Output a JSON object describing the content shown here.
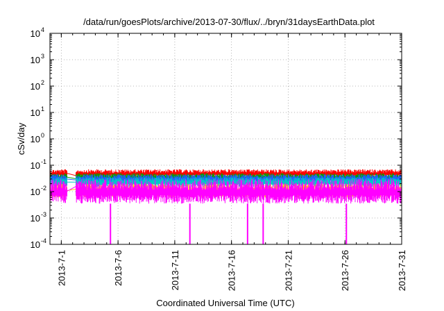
{
  "chart_data": {
    "type": "line",
    "title": "/data/run/goesPlots/archive/2013-07-30/flux/../bryn/31daysEarthData.plot",
    "xlabel": "Coordinated Universal Time (UTC)",
    "ylabel": "cSv/day",
    "x_scale": "time",
    "y_scale": "log",
    "xlim": [
      "2013-06-30",
      "2013-07-31"
    ],
    "ylim": [
      0.0001,
      10000
    ],
    "x_ticks": [
      "2013-7-1",
      "2013-7-6",
      "2013-7-11",
      "2013-7-16",
      "2013-7-21",
      "2013-7-26",
      "2013-7-31"
    ],
    "y_ticks": [
      {
        "base": "10",
        "exp": "-4",
        "value": 0.0001
      },
      {
        "base": "10",
        "exp": "-3",
        "value": 0.001
      },
      {
        "base": "10",
        "exp": "-2",
        "value": 0.01
      },
      {
        "base": "10",
        "exp": "-1",
        "value": 0.1
      },
      {
        "base": "10",
        "exp": "0",
        "value": 1
      },
      {
        "base": "10",
        "exp": "1",
        "value": 10
      },
      {
        "base": "10",
        "exp": "2",
        "value": 100
      },
      {
        "base": "10",
        "exp": "3",
        "value": 1000
      },
      {
        "base": "10",
        "exp": "4",
        "value": 10000
      }
    ],
    "grid": true,
    "legend": "none",
    "data_gap": [
      "2013-07-01T12:00",
      "2013-07-02T07:00"
    ],
    "series": [
      {
        "color": "#ff0000",
        "band": [
          0.035,
          0.07
        ]
      },
      {
        "color": "#00a000",
        "band": [
          0.025,
          0.05
        ]
      },
      {
        "color": "#2060ff",
        "band": [
          0.02,
          0.045
        ]
      },
      {
        "color": "#00c8c8",
        "band": [
          0.015,
          0.035
        ]
      },
      {
        "color": "#ffcc00",
        "band": [
          0.006,
          0.02
        ]
      },
      {
        "color": "#ff00ff",
        "band": [
          0.0035,
          0.03
        ]
      }
    ],
    "dropouts": [
      {
        "x": "2013-07-05T08:00",
        "y": 0.0001
      },
      {
        "x": "2013-07-12T08:00",
        "y": 0.0001
      },
      {
        "x": "2013-07-17T10:00",
        "y": 0.0001
      },
      {
        "x": "2013-07-18T19:00",
        "y": 0.0001
      },
      {
        "x": "2013-07-26T03:00",
        "y": 0.0001
      }
    ]
  }
}
